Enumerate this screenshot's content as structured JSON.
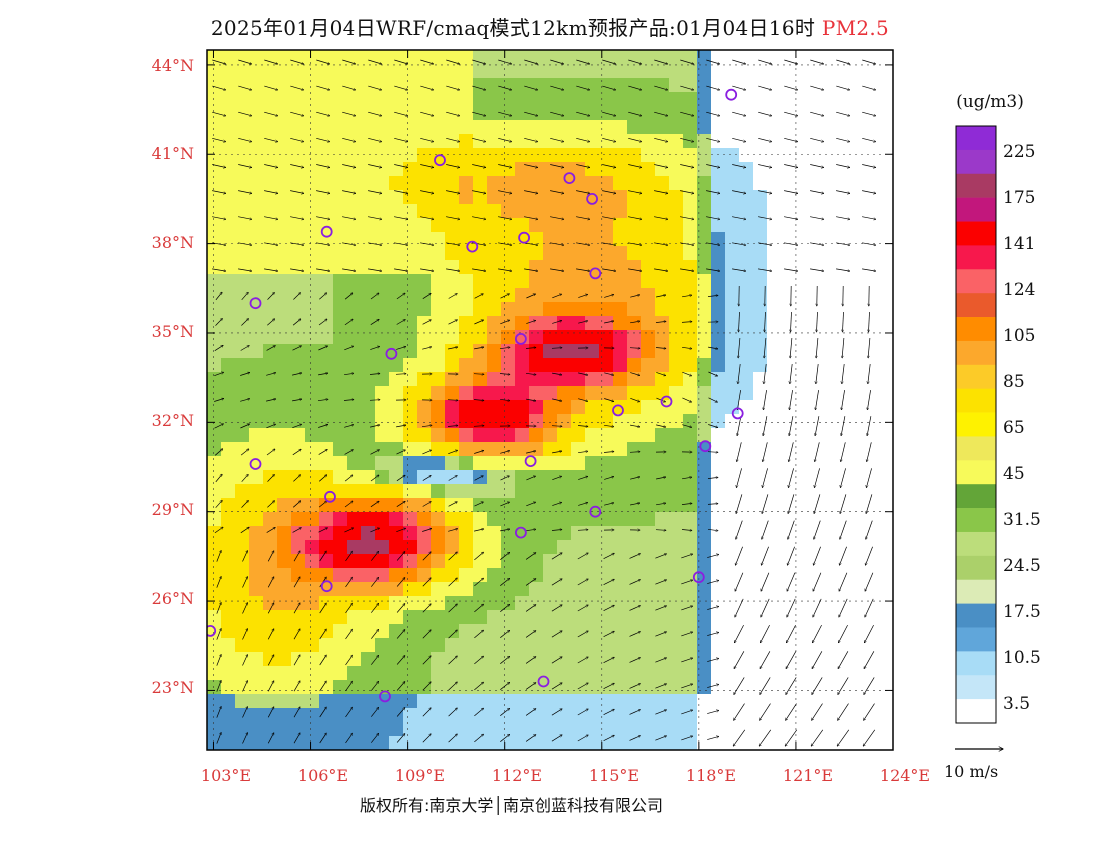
{
  "header": {
    "title": "2025年01月04日WRF/cmaq模式12km预报产品:01月04日16时",
    "species": "PM2.5"
  },
  "axes": {
    "lat_labels": [
      "44°N",
      "41°N",
      "38°N",
      "35°N",
      "32°N",
      "29°N",
      "26°N",
      "23°N"
    ],
    "lat_values": [
      44,
      41,
      38,
      35,
      32,
      29,
      26,
      23
    ],
    "lon_labels": [
      "103°E",
      "106°E",
      "109°E",
      "112°E",
      "115°E",
      "118°E",
      "121°E",
      "124°E"
    ],
    "lon_values": [
      103,
      106,
      109,
      112,
      115,
      118,
      121,
      124
    ],
    "lon_range": [
      102.8,
      124
    ],
    "lat_range": [
      21.0,
      44.5
    ]
  },
  "legend": {
    "unit": "(ug/m3)",
    "labels": [
      "225",
      "175",
      "141",
      "124",
      "105",
      "85",
      "65",
      "45",
      "31.5",
      "24.5",
      "17.5",
      "10.5",
      "3.5"
    ],
    "colors": [
      "#8f2bd6",
      "#9b39c9",
      "#a93a63",
      "#c2177c",
      "#fb0000",
      "#f7184c",
      "#fa6266",
      "#ea5a2c",
      "#ff8c00",
      "#fca82c",
      "#fccb28",
      "#fce200",
      "#fef200",
      "#eee85b",
      "#f7fa5a",
      "#63a538",
      "#8ac649",
      "#bcdd7b",
      "#abd06a",
      "#dcebb6",
      "#4a8fc5",
      "#60a6da",
      "#a8dcf6",
      "#c4e6f8",
      "#ffffff"
    ]
  },
  "wind_reference": "10 m/s",
  "copyright": "版权所有:南京大学│南京创蓝科技有限公司",
  "hotspots": [
    {
      "name": "sichuan-basin-hotspot",
      "lon": 108.0,
      "lat": 28.0,
      "peak": 150
    },
    {
      "name": "central-china-hotspot",
      "lon": 111.5,
      "lat": 32.2,
      "peak": 140
    },
    {
      "name": "north-china-plain-band",
      "lon": 114.0,
      "lat": 34.3,
      "peak": 120
    }
  ],
  "city_markers": [
    {
      "lon": 119.0,
      "lat": 43.0
    },
    {
      "lon": 110.0,
      "lat": 40.8
    },
    {
      "lon": 114.0,
      "lat": 40.2
    },
    {
      "lon": 114.7,
      "lat": 39.5
    },
    {
      "lon": 106.5,
      "lat": 38.4
    },
    {
      "lon": 111.0,
      "lat": 37.9
    },
    {
      "lon": 112.6,
      "lat": 38.2
    },
    {
      "lon": 114.8,
      "lat": 37.0
    },
    {
      "lon": 104.3,
      "lat": 36.0
    },
    {
      "lon": 108.5,
      "lat": 34.3
    },
    {
      "lon": 112.5,
      "lat": 34.8
    },
    {
      "lon": 115.5,
      "lat": 32.4
    },
    {
      "lon": 117.0,
      "lat": 32.7
    },
    {
      "lon": 119.2,
      "lat": 32.3
    },
    {
      "lon": 118.2,
      "lat": 31.2
    },
    {
      "lon": 104.3,
      "lat": 30.6
    },
    {
      "lon": 112.8,
      "lat": 30.7
    },
    {
      "lon": 106.6,
      "lat": 29.5
    },
    {
      "lon": 114.8,
      "lat": 29.0
    },
    {
      "lon": 112.5,
      "lat": 28.3
    },
    {
      "lon": 106.5,
      "lat": 26.5
    },
    {
      "lon": 118.0,
      "lat": 26.8
    },
    {
      "lon": 102.9,
      "lat": 25.0
    },
    {
      "lon": 108.3,
      "lat": 22.8
    },
    {
      "lon": 113.2,
      "lat": 23.3
    }
  ]
}
